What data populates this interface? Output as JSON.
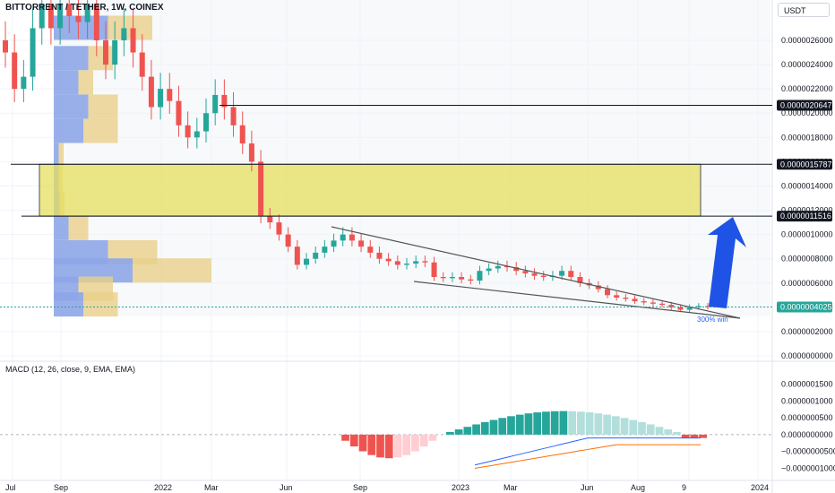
{
  "header": {
    "symbol": "BITTORRENT / TETHER, 1W, COINEX",
    "currency": "USDT"
  },
  "macd": {
    "label": "MACD (12, 26, close, 9, EMA, EMA)",
    "y_ticks": [
      "0.0000001500",
      "0.0000001000",
      "0.0000000500",
      "0.0000000000",
      "−0.0000000500",
      "−0.0000001000"
    ],
    "y_tick_values": [
      1.5e-07,
      1e-07,
      5e-08,
      0,
      -5e-08,
      -1e-07
    ],
    "hist_colors": {
      "pos_strong": "#26a69a",
      "pos_weak": "#b2dfdb",
      "neg_strong": "#ef5350",
      "neg_weak": "#ffcdd2"
    }
  },
  "annotation": {
    "text": "300% win"
  },
  "price_labels": [
    {
      "label": "0.0000020647",
      "value": 2.0647e-06
    },
    {
      "label": "0.0000015787",
      "value": 1.5787e-06
    },
    {
      "label": "0.0000011516",
      "value": 1.1516e-06
    },
    {
      "label": "0.0000004025",
      "value": 4.025e-07
    }
  ],
  "colors": {
    "up": "#26a69a",
    "down": "#ef5350",
    "zone_fill": "#e6e060",
    "zone_stroke": "#131722",
    "arrow": "#1e53e5",
    "vp_up": "#8ea6e8",
    "vp_down": "#e8cf8a",
    "current_price_bg": "#26a69a",
    "bg": "#ffffff"
  },
  "chart_data": {
    "type": "candlestick",
    "title": "BITTORRENT / TETHER, 1W, COINEX",
    "x_labels": [
      "Jul",
      "Sep",
      "2022",
      "Mar",
      "Jun",
      "Sep",
      "2023",
      "Mar",
      "Jun",
      "Aug",
      "9",
      "2024"
    ],
    "y_ticks": [
      "0.0000026000",
      "0.0000024000",
      "0.0000022000",
      "0.0000020000",
      "0.0000018000",
      "0.0000016000",
      "0.0000014000",
      "0.0000012000",
      "0.0000010000",
      "0.0000008000",
      "0.0000006000",
      "0.0000004000",
      "0.0000002000",
      "0.0000000000"
    ],
    "y_tick_values": [
      2.6e-06,
      2.4e-06,
      2.2e-06,
      2e-06,
      1.8e-06,
      1.6e-06,
      1.4e-06,
      1.2e-06,
      1e-06,
      8e-07,
      6e-07,
      4e-07,
      2e-07,
      0
    ],
    "ylim": [
      0,
      2.8e-06
    ],
    "levels": [
      {
        "name": "resistance",
        "value": 2.0647e-06
      },
      {
        "name": "zone-top",
        "value": 1.5787e-06
      },
      {
        "name": "zone-bottom",
        "value": 1.1516e-06
      }
    ],
    "current_price": 4.025e-07,
    "candles_approx": [
      [
        2.6e-06,
        2.5e-06
      ],
      [
        2.5e-06,
        2.2e-06
      ],
      [
        2.2e-06,
        2.3e-06
      ],
      [
        2.3e-06,
        2.7e-06
      ],
      [
        2.7e-06,
        2.9e-06
      ],
      [
        2.9e-06,
        2.7e-06
      ],
      [
        2.7e-06,
        2.9e-06
      ],
      [
        2.9e-06,
        2.8e-06
      ],
      [
        2.8e-06,
        2.75e-06
      ],
      [
        2.75e-06,
        2.9e-06
      ],
      [
        2.9e-06,
        2.6e-06
      ],
      [
        2.6e-06,
        2.4e-06
      ],
      [
        2.4e-06,
        2.6e-06
      ],
      [
        2.6e-06,
        2.7e-06
      ],
      [
        2.7e-06,
        2.5e-06
      ],
      [
        2.5e-06,
        2.3e-06
      ],
      [
        2.3e-06,
        2.05e-06
      ],
      [
        2.05e-06,
        2.2e-06
      ],
      [
        2.2e-06,
        2.1e-06
      ],
      [
        2.1e-06,
        1.9e-06
      ],
      [
        1.9e-06,
        1.8e-06
      ],
      [
        1.8e-06,
        1.85e-06
      ],
      [
        1.85e-06,
        2e-06
      ],
      [
        2e-06,
        2.15e-06
      ],
      [
        2.15e-06,
        2.05e-06
      ],
      [
        2.05e-06,
        1.9e-06
      ],
      [
        1.9e-06,
        1.75e-06
      ],
      [
        1.75e-06,
        1.6e-06
      ],
      [
        1.6e-06,
        1.15e-06
      ],
      [
        1.15e-06,
        1.1e-06
      ],
      [
        1.1e-06,
        1e-06
      ],
      [
        1e-06,
        9e-07
      ],
      [
        9e-07,
        7.5e-07
      ],
      [
        7.5e-07,
        8e-07
      ],
      [
        8e-07,
        8.5e-07
      ],
      [
        8.5e-07,
        9e-07
      ],
      [
        9e-07,
        9.5e-07
      ],
      [
        9.5e-07,
        1e-06
      ],
      [
        1e-06,
        9.5e-07
      ],
      [
        9.5e-07,
        9e-07
      ],
      [
        9e-07,
        8.5e-07
      ],
      [
        8.5e-07,
        8e-07
      ],
      [
        8e-07,
        7.8e-07
      ],
      [
        7.8e-07,
        7.5e-07
      ],
      [
        7.5e-07,
        7.6e-07
      ],
      [
        7.6e-07,
        7.8e-07
      ],
      [
        7.8e-07,
        7.7e-07
      ],
      [
        7.7e-07,
        6.5e-07
      ],
      [
        6.5e-07,
        6.4e-07
      ],
      [
        6.4e-07,
        6.5e-07
      ],
      [
        6.5e-07,
        6.3e-07
      ],
      [
        6.3e-07,
        6.2e-07
      ],
      [
        6.2e-07,
        7e-07
      ],
      [
        7e-07,
        7.2e-07
      ],
      [
        7.2e-07,
        7.4e-07
      ],
      [
        7.4e-07,
        7.3e-07
      ],
      [
        7.3e-07,
        7e-07
      ],
      [
        7e-07,
        6.8e-07
      ],
      [
        6.8e-07,
        6.6e-07
      ],
      [
        6.6e-07,
        6.5e-07
      ],
      [
        6.5e-07,
        6.6e-07
      ],
      [
        6.6e-07,
        7e-07
      ],
      [
        7e-07,
        6.5e-07
      ],
      [
        6.5e-07,
        6e-07
      ],
      [
        6e-07,
        5.8e-07
      ],
      [
        5.8e-07,
        5.5e-07
      ],
      [
        5.5e-07,
        5e-07
      ],
      [
        5e-07,
        4.8e-07
      ],
      [
        4.8e-07,
        4.7e-07
      ],
      [
        4.7e-07,
        4.5e-07
      ],
      [
        4.5e-07,
        4.4e-07
      ],
      [
        4.4e-07,
        4.3e-07
      ],
      [
        4.3e-07,
        4.2e-07
      ],
      [
        4.2e-07,
        4e-07
      ],
      [
        4e-07,
        3.8e-07
      ],
      [
        3.8e-07,
        4e-07
      ],
      [
        4e-07,
        4.1e-07
      ],
      [
        4.1e-07,
        4.025e-07
      ]
    ],
    "volume_profile_approx": [
      {
        "price": 2.7e-06,
        "up": 0.55,
        "down": 0.45
      },
      {
        "price": 2.45e-06,
        "up": 0.35,
        "down": 0.25
      },
      {
        "price": 2.25e-06,
        "up": 0.25,
        "down": 0.15
      },
      {
        "price": 2.05e-06,
        "up": 0.35,
        "down": 0.3
      },
      {
        "price": 1.85e-06,
        "up": 0.3,
        "down": 0.35
      },
      {
        "price": 1.65e-06,
        "up": 0.05,
        "down": 0.05
      },
      {
        "price": 1.45e-06,
        "up": 0.05,
        "down": 0.04
      },
      {
        "price": 1.25e-06,
        "up": 0.06,
        "down": 0.05
      },
      {
        "price": 1.05e-06,
        "up": 0.15,
        "down": 0.2
      },
      {
        "price": 8.5e-07,
        "up": 0.55,
        "down": 0.5
      },
      {
        "price": 7e-07,
        "up": 0.8,
        "down": 0.8
      },
      {
        "price": 5.5e-07,
        "up": 0.25,
        "down": 0.35
      },
      {
        "price": 4.2e-07,
        "up": 0.3,
        "down": 0.35
      }
    ]
  }
}
